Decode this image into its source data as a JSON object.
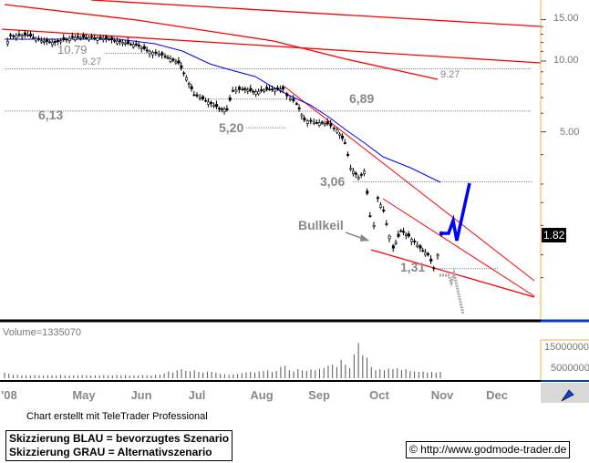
{
  "chart_data": {
    "type": "candlestick",
    "y_scale": "log",
    "ylim": [
      1.0,
      17.5
    ],
    "y_ticks": [
      "15.00",
      "10.00",
      "5.00"
    ],
    "last_price": "1.82",
    "x_ticks": [
      "'08",
      "May",
      "Jun",
      "Jul",
      "Aug",
      "Sep",
      "Oct",
      "Nov",
      "Dec"
    ],
    "price": [
      {
        "date": "2008-04-04",
        "close": 11.5
      },
      {
        "date": "2008-04-07",
        "close": 12.8
      },
      {
        "date": "2008-04-16",
        "close": 12.9
      },
      {
        "date": "2008-04-23",
        "close": 12.2
      },
      {
        "date": "2008-04-30",
        "close": 12.0
      },
      {
        "date": "2008-05-09",
        "close": 12.6
      },
      {
        "date": "2008-05-19",
        "close": 12.6
      },
      {
        "date": "2008-05-28",
        "close": 12.4
      },
      {
        "date": "2008-06-04",
        "close": 12.0
      },
      {
        "date": "2008-06-11",
        "close": 11.7
      },
      {
        "date": "2008-06-18",
        "close": 11.0
      },
      {
        "date": "2008-06-26",
        "close": 10.5
      },
      {
        "date": "2008-07-03",
        "close": 9.8
      },
      {
        "date": "2008-07-07",
        "close": 8.5
      },
      {
        "date": "2008-07-11",
        "close": 7.2
      },
      {
        "date": "2008-07-17",
        "close": 6.8
      },
      {
        "date": "2008-07-24",
        "close": 6.3
      },
      {
        "date": "2008-07-28",
        "close": 6.2
      },
      {
        "date": "2008-07-31",
        "close": 7.5
      },
      {
        "date": "2008-08-05",
        "close": 7.6
      },
      {
        "date": "2008-08-12",
        "close": 7.4
      },
      {
        "date": "2008-08-19",
        "close": 7.6
      },
      {
        "date": "2008-08-26",
        "close": 7.6
      },
      {
        "date": "2008-08-28",
        "close": 7.1
      },
      {
        "date": "2008-09-02",
        "close": 6.6
      },
      {
        "date": "2008-09-06",
        "close": 5.6
      },
      {
        "date": "2008-09-11",
        "close": 5.5
      },
      {
        "date": "2008-09-18",
        "close": 5.4
      },
      {
        "date": "2008-09-23",
        "close": 5.1
      },
      {
        "date": "2008-09-27",
        "close": 4.5
      },
      {
        "date": "2008-09-30",
        "close": 3.5
      },
      {
        "date": "2008-10-04",
        "close": 3.2
      },
      {
        "date": "2008-10-07",
        "close": 3.4
      },
      {
        "date": "2008-10-10",
        "close": 2.2
      },
      {
        "date": "2008-10-12",
        "close": 2.0
      },
      {
        "date": "2008-10-14",
        "close": 2.6
      },
      {
        "date": "2008-10-17",
        "close": 2.3
      },
      {
        "date": "2008-10-20",
        "close": 1.8
      },
      {
        "date": "2008-10-22",
        "close": 1.6
      },
      {
        "date": "2008-10-26",
        "close": 1.9
      },
      {
        "date": "2008-10-30",
        "close": 1.8
      },
      {
        "date": "2008-11-05",
        "close": 1.6
      },
      {
        "date": "2008-11-09",
        "close": 1.5
      },
      {
        "date": "2008-11-12",
        "close": 1.32
      },
      {
        "date": "2008-11-14",
        "close": 1.5
      },
      {
        "date": "2008-11-16",
        "close": 1.82
      }
    ],
    "levels": [
      {
        "label": "10.79",
        "value": 10.79
      },
      {
        "label": "9.27",
        "value": 9.27
      },
      {
        "label": "6,89",
        "value": 6.89
      },
      {
        "label": "6,13",
        "value": 6.13
      },
      {
        "label": "5,20",
        "value": 5.2
      },
      {
        "label": "3,06",
        "value": 3.06
      },
      {
        "label": "1,31",
        "value": 1.31
      }
    ],
    "trendline_label": "9.27",
    "pattern_label": "Bullkeil",
    "volume": {
      "label": "Volume=1335070",
      "y_ticks": [
        "15000000",
        "5000000"
      ],
      "values": [
        2.5,
        2,
        1.5,
        1.5,
        1.2,
        1.3,
        1.2,
        1.4,
        1.3,
        1.2,
        1.4,
        1.3,
        1.2,
        1.5,
        1.3,
        1.2,
        1.3,
        1.2,
        1.4,
        1.3,
        1.2,
        1.3,
        1.2,
        1.4,
        1.3,
        1.2,
        1.5,
        1.3,
        1.4,
        1.2,
        1.3,
        1.2,
        1.4,
        1.3,
        1.2,
        1.5,
        1.6,
        2,
        3,
        2.5,
        3.5,
        4,
        3.2,
        3,
        3.5,
        2.8,
        2.5,
        3,
        2.8,
        2.5,
        2,
        1.8,
        1.5,
        1.6,
        1.8,
        2.2,
        2.6,
        2.8,
        2.5,
        3,
        3.2,
        3.5,
        2.8,
        3.2,
        5,
        5.5,
        3.5,
        3,
        4,
        3.5,
        3.2,
        3.8,
        3.5,
        4,
        4.5,
        5.5,
        6,
        5,
        8,
        6,
        4.5,
        10.5,
        15.5,
        10,
        9,
        5,
        3.5,
        4,
        3.5,
        4.2,
        4,
        4.5,
        3.5,
        4,
        3.2,
        3,
        2.8,
        3,
        2.5,
        2.8,
        2.5,
        2.8
      ]
    }
  },
  "footer": {
    "credit": "Chart erstellt mit TeleTrader Professional",
    "legend_line1": "Skizzierung BLAU = bevorzugtes Szenario",
    "legend_line2": "Skizzierung GRAU = Alternativszenario",
    "copyright": "© http://www.godmode-trader.de"
  },
  "colors": {
    "trend": "#ff0000",
    "ma": "#0000ff",
    "scenario_blue": "#0000ff",
    "scenario_gray": "#aaaaaa",
    "axis": "#f0b040"
  }
}
